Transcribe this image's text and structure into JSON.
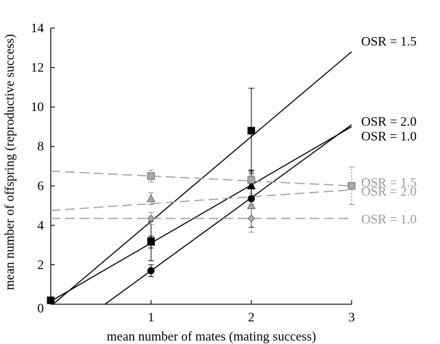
{
  "chart_data": {
    "type": "scatter",
    "xlabel": "mean number of mates (mating success)",
    "ylabel": "mean number of offspring (reproductive success)",
    "xlim": [
      0,
      3
    ],
    "ylim": [
      0,
      14
    ],
    "xticks": [
      1,
      2,
      3
    ],
    "yticks": [
      2,
      4,
      6,
      8,
      10,
      12,
      14
    ],
    "x_origin_label": "0",
    "grid": false,
    "series": [
      {
        "name": "OSR = 1.5",
        "group": "black",
        "marker": "square",
        "color": "#000000",
        "x": [
          0,
          1,
          2
        ],
        "y": [
          0.2,
          3.2,
          8.8
        ],
        "yerr": [
          0,
          1.0,
          2.15
        ],
        "fit": {
          "slope": 4.3,
          "intercept": -0.1,
          "style": "solid"
        }
      },
      {
        "name": "OSR = 2.0",
        "group": "black",
        "marker": "triangle",
        "color": "#000000",
        "x": [
          1,
          2
        ],
        "y": [
          3.15,
          6.0
        ],
        "yerr": [
          0.3,
          0.75
        ],
        "fit": {
          "slope": 2.95,
          "intercept": 0.15,
          "style": "solid"
        }
      },
      {
        "name": "OSR = 1.0",
        "group": "black",
        "marker": "circle",
        "color": "#000000",
        "x": [
          1,
          2
        ],
        "y": [
          1.7,
          5.35
        ],
        "yerr": [
          0.3,
          1.45
        ],
        "fit": {
          "slope": 3.7,
          "intercept": -2.0,
          "style": "solid"
        }
      },
      {
        "name": "OSR = 1.5",
        "group": "grey",
        "marker": "square",
        "color": "#9a9a9a",
        "x": [
          1,
          2,
          3
        ],
        "y": [
          6.5,
          6.3,
          6.0
        ],
        "yerr": [
          0.3,
          0.25,
          0.95
        ],
        "fit": {
          "slope": -0.25,
          "intercept": 6.75,
          "style": "dashed"
        }
      },
      {
        "name": "OSR = 2.0",
        "group": "grey",
        "marker": "triangle",
        "color": "#9a9a9a",
        "x": [
          1,
          2
        ],
        "y": [
          5.35,
          5.0
        ],
        "yerr": [
          0.3,
          0.6
        ],
        "fit": {
          "slope": 0.35,
          "intercept": 4.75,
          "style": "dashed"
        }
      },
      {
        "name": "OSR = 1.0",
        "group": "grey",
        "marker": "diamond",
        "color": "#9a9a9a",
        "x": [
          1,
          2
        ],
        "y": [
          4.35,
          4.35
        ],
        "yerr": [
          0.3,
          0.7
        ],
        "fit": {
          "slope": 0.0,
          "intercept": 4.35,
          "style": "dashed"
        }
      }
    ],
    "annotations": [
      {
        "text": "OSR = 1.5",
        "group": "black",
        "color": "#000000",
        "y": 13.35
      },
      {
        "text": "OSR = 2.0",
        "group": "black",
        "color": "#000000",
        "y": 9.3
      },
      {
        "text": "OSR = 1.0",
        "group": "black",
        "color": "#000000",
        "y": 8.55
      },
      {
        "text": "OSR = 1.5",
        "group": "grey",
        "color": "#9a9a9a",
        "y": 6.2
      },
      {
        "text": "OSR = 2.0",
        "group": "grey",
        "color": "#9a9a9a",
        "y": 5.75
      },
      {
        "text": "OSR = 1.0",
        "group": "grey",
        "color": "#9a9a9a",
        "y": 4.35
      }
    ]
  }
}
